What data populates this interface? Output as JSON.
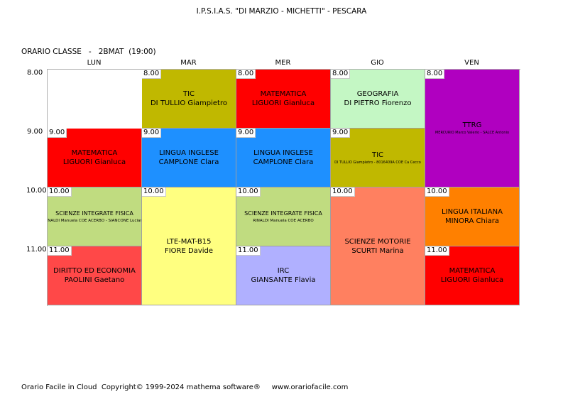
{
  "header": {
    "school": "I.P.S.I.A.S. \"DI MARZIO - MICHETTI\" - PESCARA",
    "class_label": "ORARIO CLASSE   -   2BMAT  (19:00)"
  },
  "days": [
    "LUN",
    "MAR",
    "MER",
    "GIO",
    "VEN"
  ],
  "times": [
    "8.00",
    "9.00",
    "10.00",
    "11.00"
  ],
  "colors": {
    "red": "#ff0000",
    "olive": "#c0b800",
    "light_green": "#c4f7c4",
    "purple": "#b000c0",
    "blue": "#1e90ff",
    "green_yellow": "#c0dc80",
    "pale_yellow": "#ffff80",
    "salmon": "#ff8060",
    "orange": "#ff8000",
    "lavender": "#b0b0ff",
    "coral_red": "#ff4848"
  },
  "lessons": [
    {
      "day": 0,
      "start": 1,
      "span": 1,
      "hour": "9.00",
      "subject": "MATEMATICA",
      "teacher": "LIGUORI Gianluca",
      "color": "#ff0000"
    },
    {
      "day": 0,
      "start": 2,
      "span": 1,
      "hour": "10.00",
      "subject": "SCIENZE INTEGRATE FISICA",
      "teacher": "RINALDI Manuela COE ACERBO - SIANCONE Luciano",
      "color": "#c0dc80",
      "size": "small"
    },
    {
      "day": 0,
      "start": 3,
      "span": 1,
      "hour": "11.00",
      "subject": "DIRITTO ED ECONOMIA",
      "teacher": "PAOLINI Gaetano",
      "color": "#ff4848"
    },
    {
      "day": 1,
      "start": 0,
      "span": 1,
      "hour": "8.00",
      "subject": "TIC",
      "teacher": "DI TULLIO Giampietro",
      "color": "#c0b800"
    },
    {
      "day": 1,
      "start": 1,
      "span": 1,
      "hour": "9.00",
      "subject": "LINGUA INGLESE",
      "teacher": "CAMPLONE Clara",
      "color": "#1e90ff"
    },
    {
      "day": 1,
      "start": 2,
      "span": 2,
      "hour": "10.00",
      "subject": "LTE-MAT-B15",
      "teacher": "FIORE Davide",
      "color": "#ffff80"
    },
    {
      "day": 2,
      "start": 0,
      "span": 1,
      "hour": "8.00",
      "subject": "MATEMATICA",
      "teacher": "LIGUORI Gianluca",
      "color": "#ff0000"
    },
    {
      "day": 2,
      "start": 1,
      "span": 1,
      "hour": "9.00",
      "subject": "LINGUA INGLESE",
      "teacher": "CAMPLONE Clara",
      "color": "#1e90ff"
    },
    {
      "day": 2,
      "start": 2,
      "span": 1,
      "hour": "10.00",
      "subject": "SCIENZE INTEGRATE FISICA",
      "teacher": "RINALDI Manuela COE ACERBO",
      "color": "#c0dc80",
      "size": "small"
    },
    {
      "day": 2,
      "start": 3,
      "span": 1,
      "hour": "11.00",
      "subject": "IRC",
      "teacher": "GIANSANTE Flavia",
      "color": "#b0b0ff"
    },
    {
      "day": 3,
      "start": 0,
      "span": 1,
      "hour": "8.00",
      "subject": "GEOGRAFIA",
      "teacher": "DI PIETRO Fiorenzo",
      "color": "#c4f7c4"
    },
    {
      "day": 3,
      "start": 1,
      "span": 1,
      "hour": "9.00",
      "subject": "TIC",
      "teacher": "DI TULLIO Giampietro - 8016409A  COE Ca Cecco",
      "color": "#c0b800",
      "size": "tiny"
    },
    {
      "day": 3,
      "start": 2,
      "span": 2,
      "hour": "10.00",
      "subject": "SCIENZE MOTORIE",
      "teacher": "SCURTI Marina",
      "color": "#ff8060"
    },
    {
      "day": 4,
      "start": 0,
      "span": 2,
      "hour": "8.00",
      "subject": "TTRG",
      "teacher": "MERCURIO Marco Valerio - SALCE Antonio",
      "color": "#b000c0",
      "size": "tiny"
    },
    {
      "day": 4,
      "start": 2,
      "span": 1,
      "hour": "10.00",
      "subject": "LINGUA ITALIANA",
      "teacher": "MINORA Chiara",
      "color": "#ff8000"
    },
    {
      "day": 4,
      "start": 3,
      "span": 1,
      "hour": "11.00",
      "subject": "MATEMATICA",
      "teacher": "LIGUORI Gianluca",
      "color": "#ff0000"
    }
  ],
  "footer": "Orario Facile in Cloud  Copyright© 1999-2024 mathema software®     www.orariofacile.com"
}
